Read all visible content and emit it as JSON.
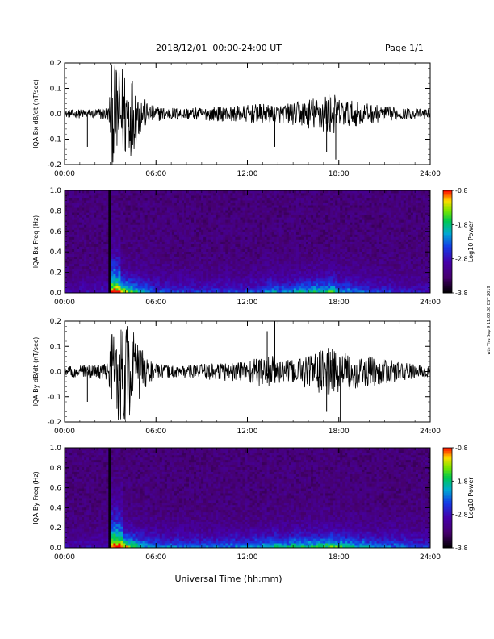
{
  "header": {
    "title": "2018/12/01  00:00-24:00 UT",
    "page": "Page 1/1"
  },
  "footer": {
    "xlabel": "Universal Time (hh:mm)",
    "side_note": "wth Thu Sep 9 11:03:08 EST 2019"
  },
  "chart_data": [
    {
      "type": "line",
      "title": "",
      "ylabel": "IQA Bx dB/dt (nT/sec)",
      "x_ticks": [
        "00:00",
        "06:00",
        "12:00",
        "18:00",
        "24:00"
      ],
      "y_ticks": [
        "-0.2",
        "-0.1",
        "0.0",
        "0.1",
        "0.2"
      ],
      "xlim_hours": [
        0,
        24
      ],
      "ylim": [
        -0.2,
        0.2
      ],
      "series": [
        {
          "envelope_hours": [
            0,
            1,
            2,
            2.9,
            3.1,
            3.5,
            4,
            4.5,
            5,
            5.5,
            6,
            7,
            8,
            9,
            10,
            11,
            12,
            13,
            13.5,
            14,
            15,
            15.5,
            16,
            16.5,
            17,
            17.5,
            18,
            19,
            20,
            21,
            22,
            23,
            24
          ],
          "envelope_amplitude": [
            0.015,
            0.018,
            0.02,
            0.03,
            0.2,
            0.2,
            0.2,
            0.15,
            0.08,
            0.04,
            0.03,
            0.025,
            0.025,
            0.025,
            0.03,
            0.03,
            0.035,
            0.04,
            0.035,
            0.035,
            0.045,
            0.05,
            0.06,
            0.07,
            0.08,
            0.09,
            0.06,
            0.05,
            0.04,
            0.03,
            0.025,
            0.02,
            0.018
          ],
          "spikes": [
            {
              "hour": 1.5,
              "value": -0.13
            },
            {
              "hour": 13.8,
              "value": -0.13
            },
            {
              "hour": 17.2,
              "value": -0.15
            },
            {
              "hour": 17.8,
              "value": -0.18
            }
          ]
        }
      ]
    },
    {
      "type": "heatmap",
      "title": "",
      "ylabel": "IQA Bx Freq (Hz)",
      "x_ticks": [
        "00:00",
        "06:00",
        "12:00",
        "18:00",
        "24:00"
      ],
      "y_ticks": [
        "0.0",
        "0.2",
        "0.4",
        "0.6",
        "0.8",
        "1.0"
      ],
      "xlim_hours": [
        0,
        24
      ],
      "ylim": [
        0,
        1.0
      ],
      "colorbar": {
        "label": "Log10 Power",
        "ticks": [
          "-0.8",
          "-1.8",
          "-2.8",
          "-3.8"
        ],
        "range": [
          -3.8,
          -0.8
        ]
      },
      "activity_profile_hours": [
        0,
        2.9,
        3.0,
        3.3,
        4,
        5,
        6,
        8,
        10,
        12,
        13,
        13.9,
        14.1,
        15,
        15.5,
        16,
        17,
        17.5,
        18,
        20,
        22,
        24
      ],
      "activity_level": [
        0.15,
        0.2,
        0.95,
        1.0,
        0.8,
        0.55,
        0.35,
        0.3,
        0.3,
        0.32,
        0.35,
        0.55,
        0.4,
        0.5,
        0.6,
        0.55,
        0.6,
        0.7,
        0.5,
        0.35,
        0.25,
        0.2
      ]
    },
    {
      "type": "line",
      "title": "",
      "ylabel": "IQA By dB/dt (nT/sec)",
      "x_ticks": [
        "00:00",
        "06:00",
        "12:00",
        "18:00",
        "24:00"
      ],
      "y_ticks": [
        "-0.2",
        "-0.1",
        "0.0",
        "0.1",
        "0.2"
      ],
      "xlim_hours": [
        0,
        24
      ],
      "ylim": [
        -0.2,
        0.2
      ],
      "series": [
        {
          "envelope_hours": [
            0,
            1,
            2,
            2.9,
            3.1,
            3.5,
            4,
            4.5,
            5,
            5.5,
            6,
            7,
            8,
            9,
            10,
            11,
            12,
            13,
            13.5,
            14,
            15,
            15.5,
            16,
            16.5,
            17,
            17.5,
            18,
            19,
            20,
            21,
            22,
            23,
            24
          ],
          "envelope_amplitude": [
            0.02,
            0.025,
            0.03,
            0.035,
            0.2,
            0.2,
            0.2,
            0.17,
            0.1,
            0.05,
            0.03,
            0.025,
            0.025,
            0.03,
            0.035,
            0.04,
            0.05,
            0.06,
            0.07,
            0.05,
            0.045,
            0.06,
            0.07,
            0.08,
            0.09,
            0.1,
            0.08,
            0.07,
            0.06,
            0.05,
            0.04,
            0.03,
            0.025
          ],
          "spikes": [
            {
              "hour": 1.5,
              "value": -0.12
            },
            {
              "hour": 13.3,
              "value": 0.16
            },
            {
              "hour": 13.8,
              "value": 0.2
            },
            {
              "hour": 17.2,
              "value": -0.16
            },
            {
              "hour": 18.1,
              "value": -0.2
            }
          ]
        }
      ]
    },
    {
      "type": "heatmap",
      "title": "",
      "ylabel": "IQA By Freq (Hz)",
      "x_ticks": [
        "00:00",
        "06:00",
        "12:00",
        "18:00",
        "24:00"
      ],
      "y_ticks": [
        "0.0",
        "0.2",
        "0.4",
        "0.6",
        "0.8",
        "1.0"
      ],
      "xlim_hours": [
        0,
        24
      ],
      "ylim": [
        0,
        1.0
      ],
      "colorbar": {
        "label": "Log10 Power",
        "ticks": [
          "-0.8",
          "-1.8",
          "-2.8",
          "-3.8"
        ],
        "range": [
          -3.8,
          -0.8
        ]
      },
      "activity_profile_hours": [
        0,
        2.9,
        3.0,
        3.3,
        4,
        5,
        6,
        8,
        10,
        12,
        13,
        13.9,
        14.1,
        15,
        15.5,
        16,
        17,
        17.5,
        18,
        20,
        22,
        24
      ],
      "activity_level": [
        0.15,
        0.2,
        0.95,
        1.0,
        0.85,
        0.6,
        0.45,
        0.4,
        0.4,
        0.45,
        0.5,
        0.65,
        0.5,
        0.6,
        0.65,
        0.6,
        0.7,
        0.75,
        0.65,
        0.5,
        0.4,
        0.3
      ]
    }
  ]
}
